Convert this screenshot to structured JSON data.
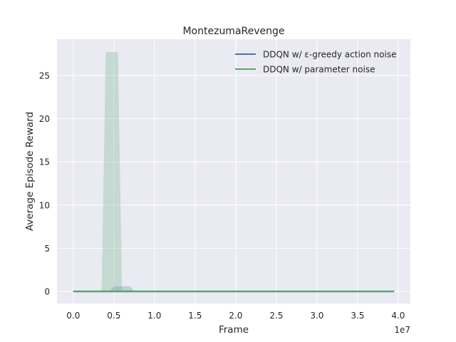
{
  "chart_data": {
    "type": "line",
    "title": "MontezumaRevenge",
    "xlabel": "Frame",
    "ylabel": "Average Episode Reward",
    "x_offset_label": "1e7",
    "xlim": [
      -0.2,
      4.15
    ],
    "ylim": [
      -1.4,
      29.2
    ],
    "xticks": [
      0.0,
      0.5,
      1.0,
      1.5,
      2.0,
      2.5,
      3.0,
      3.5,
      4.0
    ],
    "xtick_labels": [
      "0.0",
      "0.5",
      "1.0",
      "1.5",
      "2.0",
      "2.5",
      "3.0",
      "3.5",
      "4.0"
    ],
    "yticks": [
      0,
      5,
      10,
      15,
      20,
      25
    ],
    "ytick_labels": [
      "0",
      "5",
      "10",
      "15",
      "20",
      "25"
    ],
    "grid": true,
    "legend_position": "top-right",
    "series": [
      {
        "name": "DDQN w/ ε-greedy action noise",
        "color": "#4c72b0",
        "x": [
          0.0,
          0.5,
          0.5,
          0.5,
          0.5,
          3.95
        ],
        "y": [
          0,
          0,
          0,
          0,
          0,
          0
        ],
        "band_x": [
          0.0,
          0.45,
          0.5,
          0.55,
          0.7,
          0.75,
          3.95
        ],
        "band_lower": [
          0,
          0,
          0,
          0,
          0,
          0,
          0
        ],
        "band_upper": [
          0,
          0,
          0.6,
          0.6,
          0.6,
          0,
          0
        ]
      },
      {
        "name": "DDQN w/ parameter noise",
        "color": "#55a868",
        "x": [
          0.0,
          0.4,
          0.5,
          0.6,
          3.95
        ],
        "y": [
          0,
          0,
          0,
          0,
          0
        ],
        "band_x": [
          0.0,
          0.35,
          0.4,
          0.55,
          0.6,
          0.65,
          3.95
        ],
        "band_lower": [
          0,
          0,
          0,
          0,
          0,
          0,
          0
        ],
        "band_upper": [
          0,
          0,
          27.7,
          27.7,
          0,
          0,
          0
        ]
      }
    ]
  }
}
